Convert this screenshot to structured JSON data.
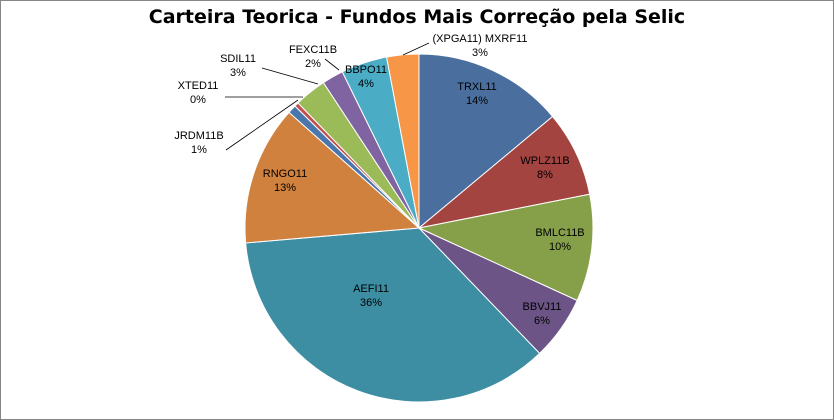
{
  "chart_data": {
    "type": "pie",
    "title": "Carteira Teorica - Fundos Mais Correção pela Selic",
    "slices": [
      {
        "label": "TRXL11",
        "pct_label": "14%",
        "value": 14,
        "color": "#4A6F9E"
      },
      {
        "label": "WPLZ11B",
        "pct_label": "8%",
        "value": 8,
        "color": "#A44441"
      },
      {
        "label": "BMLC11B",
        "pct_label": "10%",
        "value": 10,
        "color": "#86A04A"
      },
      {
        "label": "BBVJ11",
        "pct_label": "6%",
        "value": 6,
        "color": "#6C5487"
      },
      {
        "label": "AEFI11",
        "pct_label": "36%",
        "value": 36,
        "color": "#3D8DA3"
      },
      {
        "label": "RNGO11",
        "pct_label": "13%",
        "value": 13,
        "color": "#D0813E"
      },
      {
        "label": "JRDM11B",
        "pct_label": "1%",
        "value": 0.8,
        "color": "#4B76AC"
      },
      {
        "label": "XTED11",
        "pct_label": "0%",
        "value": 0.4,
        "color": "#C0504D"
      },
      {
        "label": "SDIL11",
        "pct_label": "3%",
        "value": 3,
        "color": "#9BBB59"
      },
      {
        "label": "FEXC11B",
        "pct_label": "2%",
        "value": 2,
        "color": "#8064A2"
      },
      {
        "label": "BBPO11",
        "pct_label": "4%",
        "value": 4.3,
        "color": "#4BACC6"
      },
      {
        "label": "(XPGA11) MXRF11",
        "pct_label": "3%",
        "value": 3,
        "color": "#F79646"
      }
    ]
  }
}
